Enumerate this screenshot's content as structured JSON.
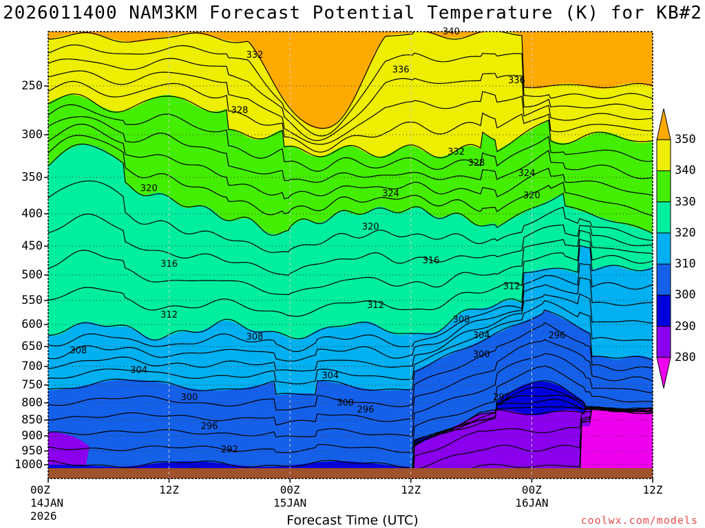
{
  "chart_data": {
    "type": "contour-fill",
    "title": "2026011400 NAM3KM Forecast Potential Temperature (K) for KB#2",
    "xlabel": "Forecast Time (UTC)",
    "y_axis": {
      "quantity": "pressure (hPa)",
      "orientation": "inverted",
      "ticks": [
        "250",
        "300",
        "350",
        "400",
        "450",
        "500",
        "550",
        "600",
        "650",
        "700",
        "750",
        "800",
        "850",
        "900",
        "950",
        "1000"
      ]
    },
    "x_axis": {
      "unit": "forecast hour",
      "range": [
        0,
        60
      ],
      "ticks": [
        {
          "hour": 0,
          "label": "00Z",
          "sub1": "14JAN",
          "sub2": "2026"
        },
        {
          "hour": 12,
          "label": "12Z",
          "sub1": "",
          "sub2": ""
        },
        {
          "hour": 24,
          "label": "00Z",
          "sub1": "15JAN",
          "sub2": ""
        },
        {
          "hour": 36,
          "label": "12Z",
          "sub1": "",
          "sub2": ""
        },
        {
          "hour": 48,
          "label": "00Z",
          "sub1": "16JAN",
          "sub2": ""
        },
        {
          "hour": 60,
          "label": "12Z",
          "sub1": "",
          "sub2": ""
        }
      ]
    },
    "colorbar": {
      "levels": [
        280,
        290,
        300,
        310,
        320,
        330,
        340,
        350
      ],
      "labels": [
        "280",
        "290",
        "300",
        "310",
        "320",
        "330",
        "340",
        "350"
      ],
      "colors": {
        "below_280": "#ee00ee",
        "280_290": "#8a00ee",
        "290_300": "#0000dd",
        "300_310": "#1560e8",
        "310_320": "#00b0f0",
        "320_330": "#00eea0",
        "330_340": "#44ee00",
        "340_350": "#eeee00",
        "above_350": "#ffaa00"
      }
    },
    "contour_labels": [
      {
        "value": "340",
        "hour": 40.0,
        "p": 190
      },
      {
        "value": "336",
        "hour": 35.0,
        "p": 232
      },
      {
        "value": "336",
        "hour": 46.5,
        "p": 244
      },
      {
        "value": "332",
        "hour": 20.5,
        "p": 216
      },
      {
        "value": "328",
        "hour": 19.0,
        "p": 275
      },
      {
        "value": "332",
        "hour": 40.5,
        "p": 320
      },
      {
        "value": "328",
        "hour": 42.5,
        "p": 333
      },
      {
        "value": "324",
        "hour": 47.5,
        "p": 345
      },
      {
        "value": "324",
        "hour": 34.0,
        "p": 372
      },
      {
        "value": "320",
        "hour": 48.0,
        "p": 375
      },
      {
        "value": "320",
        "hour": 10.0,
        "p": 365
      },
      {
        "value": "320",
        "hour": 32.0,
        "p": 420
      },
      {
        "value": "316",
        "hour": 12.0,
        "p": 481
      },
      {
        "value": "316",
        "hour": 38.0,
        "p": 475
      },
      {
        "value": "312",
        "hour": 46.0,
        "p": 522
      },
      {
        "value": "312",
        "hour": 32.5,
        "p": 560
      },
      {
        "value": "312",
        "hour": 12.0,
        "p": 580
      },
      {
        "value": "308",
        "hour": 41.0,
        "p": 590
      },
      {
        "value": "308",
        "hour": 20.5,
        "p": 628
      },
      {
        "value": "304",
        "hour": 43.0,
        "p": 625
      },
      {
        "value": "296",
        "hour": 50.5,
        "p": 625
      },
      {
        "value": "300",
        "hour": 43.0,
        "p": 670
      },
      {
        "value": "308",
        "hour": 3.0,
        "p": 660
      },
      {
        "value": "304",
        "hour": 9.0,
        "p": 710
      },
      {
        "value": "304",
        "hour": 28.0,
        "p": 725
      },
      {
        "value": "300",
        "hour": 14.0,
        "p": 785
      },
      {
        "value": "300",
        "hour": 29.5,
        "p": 800
      },
      {
        "value": "296",
        "hour": 31.5,
        "p": 820
      },
      {
        "value": "292",
        "hour": 45.0,
        "p": 785
      },
      {
        "value": "296",
        "hour": 16.0,
        "p": 870
      },
      {
        "value": "292",
        "hour": 18.0,
        "p": 945
      }
    ],
    "terrain_color": "#a0522d"
  },
  "credit": "coolwx.com/models"
}
